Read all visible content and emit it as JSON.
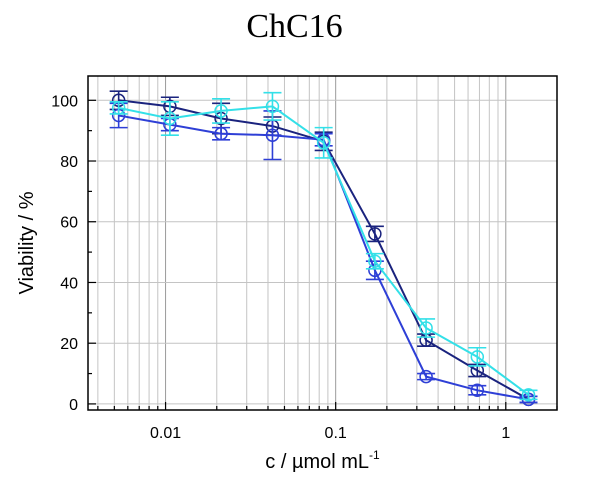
{
  "chart_data": {
    "type": "line",
    "title": "ChC16",
    "xlabel": "c / µmol mL",
    "xlabel_superscript": "-1",
    "ylabel": "Viability / %",
    "x_scale": "log",
    "xlim": [
      0.0035,
      2.0
    ],
    "ylim": [
      -2,
      108
    ],
    "x_ticks": [
      0.01,
      0.1,
      1
    ],
    "x_tick_labels": [
      "0.01",
      "0.1",
      "1"
    ],
    "y_ticks": [
      0,
      20,
      40,
      60,
      80,
      100
    ],
    "y_tick_labels": [
      "0",
      "20",
      "40",
      "60",
      "80",
      "100"
    ],
    "grid": true,
    "x": [
      0.0053,
      0.0106,
      0.0212,
      0.0425,
      0.085,
      0.17,
      0.34,
      0.68,
      1.36
    ],
    "series": [
      {
        "color": "#1a237e",
        "marker": "open-circle",
        "values": [
          100,
          98,
          94,
          91.5,
          86.5,
          56,
          21,
          11,
          1.5
        ],
        "errors": [
          3,
          3,
          5,
          3,
          3,
          2.5,
          2,
          2,
          1
        ]
      },
      {
        "color": "#2e3fd6",
        "marker": "open-circle",
        "values": [
          95,
          92,
          89,
          88.5,
          87,
          44,
          9,
          4.5,
          1.5
        ],
        "errors": [
          4,
          2,
          2,
          8,
          2,
          3,
          1,
          1.5,
          1
        ]
      },
      {
        "color": "#33e0e8",
        "marker": "open-circle",
        "values": [
          97.5,
          94,
          96.5,
          98,
          86,
          47,
          25,
          15.5,
          3
        ],
        "errors": [
          2,
          5.5,
          4,
          4.5,
          5,
          2.5,
          3,
          3,
          1.5
        ]
      }
    ]
  }
}
